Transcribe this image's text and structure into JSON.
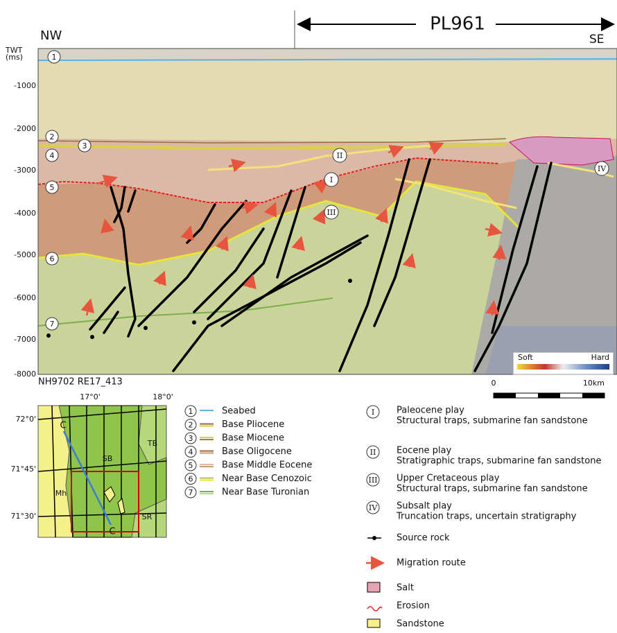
{
  "header": {
    "license": "PL961",
    "left": "NW",
    "right": "SE"
  },
  "section": {
    "axis_title": [
      "TWT",
      "(ms)"
    ],
    "ticks": [
      "-1000",
      "-2000",
      "-3000",
      "-4000",
      "-5000",
      "-6000",
      "-7000",
      "-8000"
    ],
    "horizons": [
      "1",
      "2",
      "3",
      "4",
      "5",
      "6",
      "7"
    ],
    "plays": [
      "I",
      "II",
      "III",
      "IV"
    ],
    "line_name": "NH9702 RE17_413",
    "scale": {
      "start": "0",
      "end": "10km"
    },
    "colorbar": {
      "low": "Soft",
      "high": "Hard"
    }
  },
  "map": {
    "lon": [
      "17°0'",
      "18°0'"
    ],
    "lat": [
      "72°0'",
      "71°45'",
      "71°30'"
    ],
    "profile_ends": [
      "C",
      "C"
    ],
    "areas": [
      "SB",
      "TB",
      "Mh",
      "SR"
    ]
  },
  "horizon_legend": [
    {
      "number": "1",
      "label": "Seabed"
    },
    {
      "number": "2",
      "label": "Base Pliocene"
    },
    {
      "number": "3",
      "label": "Base Miocene"
    },
    {
      "number": "4",
      "label": "Base Oligocene"
    },
    {
      "number": "5",
      "label": "Base Middle Eocene"
    },
    {
      "number": "6",
      "label": "Near Base Cenozoic"
    },
    {
      "number": "7",
      "label": "Near Base Turonian"
    }
  ],
  "play_legend": [
    {
      "numeral": "I",
      "title": "Paleocene play",
      "subtitle": "Structural traps, submarine fan sandstone"
    },
    {
      "numeral": "II",
      "title": "Eocene play",
      "subtitle": "Stratigraphic traps, submarine fan sandstone"
    },
    {
      "numeral": "III",
      "title": "Upper Cretaceous play",
      "subtitle": "Structural traps, submarine fan sandstone"
    },
    {
      "numeral": "IV",
      "title": "Subsalt play",
      "subtitle": "Truncation traps, uncertain stratigraphy"
    }
  ],
  "symbol_legend": [
    "Source rock",
    "Migration route",
    "Salt",
    "Erosion",
    "Sandstone"
  ]
}
